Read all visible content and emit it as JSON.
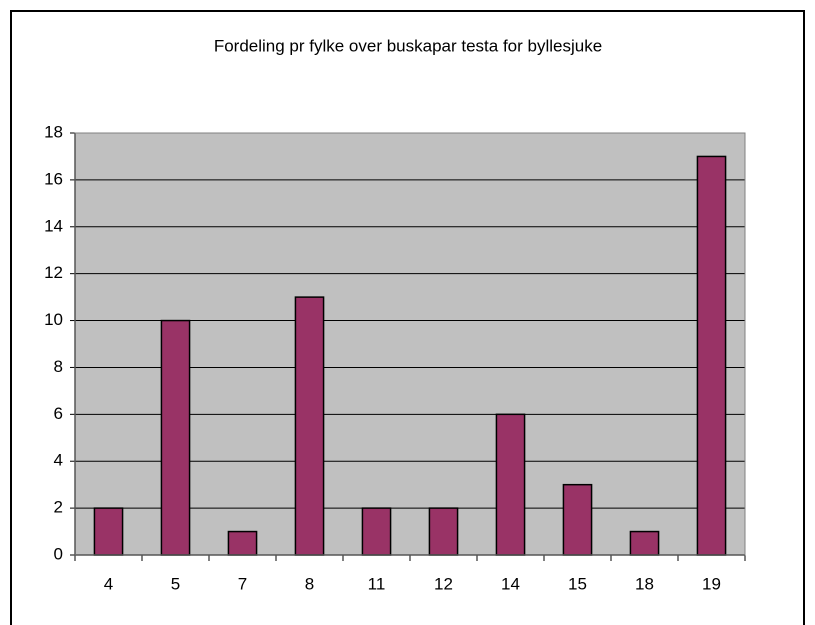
{
  "chart_data": {
    "type": "bar",
    "title": "Fordeling pr fylke over buskapar testa for byllesjuke",
    "categories": [
      "4",
      "5",
      "7",
      "8",
      "11",
      "12",
      "14",
      "15",
      "18",
      "19"
    ],
    "values": [
      2,
      10,
      1,
      11,
      2,
      2,
      6,
      3,
      1,
      17
    ],
    "color": "#993366",
    "plot_background": "#c0c0c0",
    "ylim": [
      0,
      18
    ],
    "yticks": [
      0,
      2,
      4,
      6,
      8,
      10,
      12,
      14,
      16,
      18
    ],
    "grid": true
  }
}
